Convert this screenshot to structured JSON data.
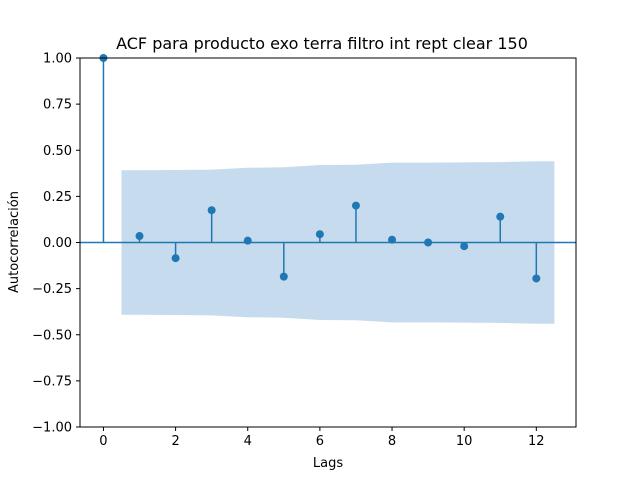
{
  "chart_data": {
    "type": "scatter",
    "subtype": "acf-stem",
    "title": "ACF para producto exo terra filtro int rept clear 150",
    "xlabel": "Lags",
    "ylabel": "Autocorrelación",
    "xlim": [
      -0.65,
      13.1
    ],
    "ylim": [
      -1.0,
      1.0
    ],
    "xticks": [
      0,
      2,
      4,
      6,
      8,
      10,
      12
    ],
    "xtick_labels": [
      "0",
      "2",
      "4",
      "6",
      "8",
      "10",
      "12"
    ],
    "yticks": [
      -1.0,
      -0.75,
      -0.5,
      -0.25,
      0.0,
      0.25,
      0.5,
      0.75,
      1.0
    ],
    "ytick_labels": [
      "−1.00",
      "−0.75",
      "−0.50",
      "−0.25",
      "0.00",
      "0.25",
      "0.50",
      "0.75",
      "1.00"
    ],
    "grid": false,
    "series": [
      {
        "x": [
          0,
          1,
          2,
          3,
          4,
          5,
          6,
          7,
          8,
          9,
          10,
          11,
          12
        ],
        "values": [
          1.0,
          0.035,
          -0.085,
          0.175,
          0.01,
          -0.185,
          0.045,
          0.2,
          0.015,
          0.0,
          -0.02,
          0.14,
          -0.195
        ],
        "color": "#1f77b4"
      }
    ],
    "confidence_band": {
      "x": [
        0.5,
        1,
        2,
        3,
        4,
        5,
        6,
        7,
        8,
        9,
        10,
        11,
        12,
        12.5
      ],
      "upper": [
        0.392,
        0.392,
        0.393,
        0.395,
        0.405,
        0.408,
        0.42,
        0.421,
        0.433,
        0.433,
        0.434,
        0.436,
        0.44,
        0.44
      ],
      "lower": [
        -0.392,
        -0.392,
        -0.393,
        -0.395,
        -0.405,
        -0.408,
        -0.42,
        -0.421,
        -0.433,
        -0.433,
        -0.434,
        -0.436,
        -0.44,
        -0.44
      ],
      "color": "#c6dbed"
    }
  }
}
